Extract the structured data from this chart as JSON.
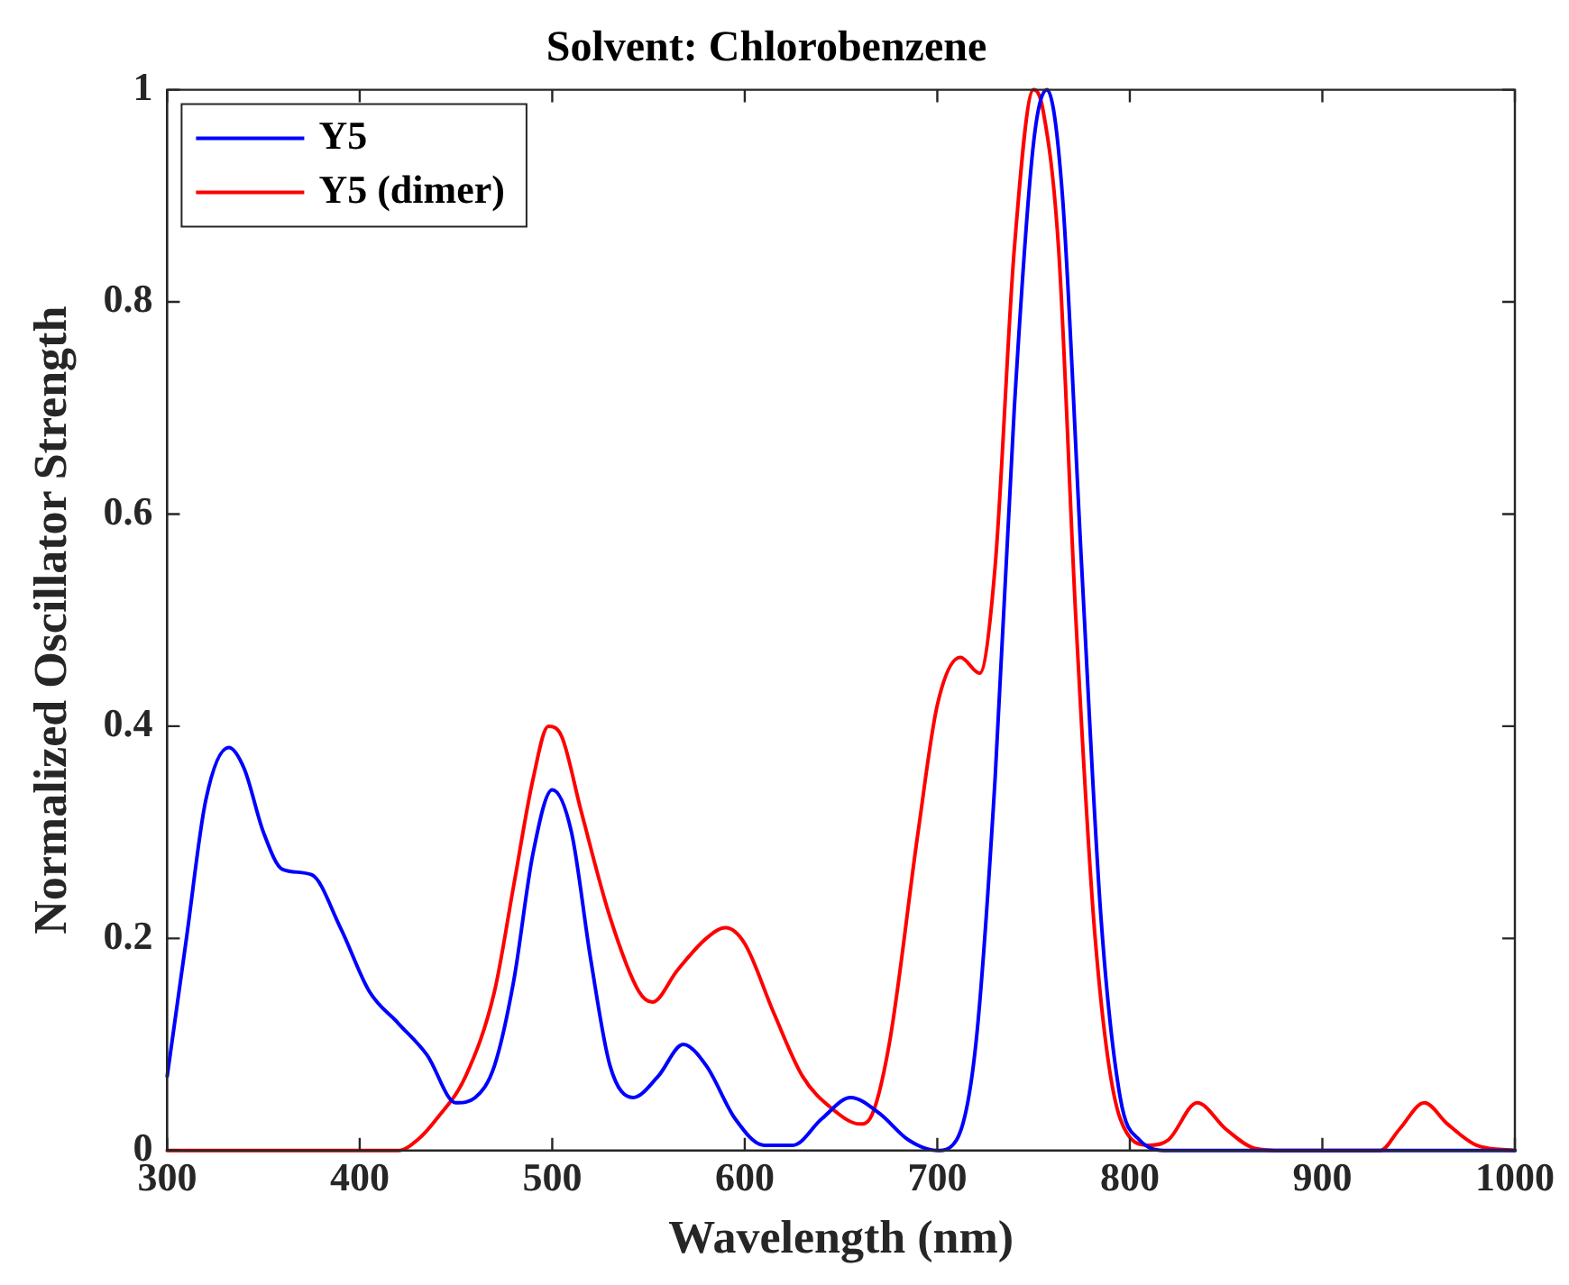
{
  "chart_data": {
    "type": "line",
    "title": "Solvent: Chlorobenzene",
    "xlabel": "Wavelength (nm)",
    "ylabel": "Normalized Oscillator Strength",
    "xlim": [
      300,
      1000
    ],
    "xticks": [
      300,
      400,
      500,
      600,
      700,
      800,
      900,
      1000
    ],
    "ylim": [
      0,
      1
    ],
    "yticks": [
      0,
      0.2,
      0.4,
      0.6,
      0.8,
      1
    ],
    "grid": false,
    "legend": "top left",
    "marker": "none",
    "line_style": "solid",
    "series": [
      {
        "name": "Y5",
        "color": "#0000ff",
        "x": [
          300,
          310,
          320,
          332,
          340,
          350,
          360,
          375,
          390,
          405,
          420,
          435,
          450,
          460,
          470,
          480,
          490,
          500,
          510,
          520,
          530,
          542,
          555,
          568,
          580,
          595,
          610,
          625,
          640,
          655,
          670,
          685,
          700,
          710,
          720,
          730,
          740,
          750,
          757,
          765,
          775,
          785,
          795,
          805,
          820,
          1000
        ],
        "values": [
          0.07,
          0.2,
          0.33,
          0.38,
          0.36,
          0.3,
          0.265,
          0.26,
          0.21,
          0.15,
          0.12,
          0.09,
          0.045,
          0.05,
          0.08,
          0.16,
          0.28,
          0.34,
          0.3,
          0.18,
          0.08,
          0.05,
          0.07,
          0.1,
          0.08,
          0.03,
          0.005,
          0.005,
          0.03,
          0.05,
          0.035,
          0.01,
          0,
          0.01,
          0.1,
          0.35,
          0.7,
          0.95,
          1,
          0.9,
          0.55,
          0.22,
          0.05,
          0.01,
          0,
          0
        ]
      },
      {
        "name": "Y5 (dimer)",
        "color": "#ff0000",
        "x": [
          300,
          420,
          430,
          440,
          455,
          470,
          480,
          490,
          498,
          505,
          515,
          530,
          545,
          552,
          565,
          580,
          590,
          600,
          615,
          630,
          645,
          660,
          665,
          675,
          690,
          700,
          712,
          722,
          730,
          740,
          750,
          755,
          763,
          772,
          782,
          795,
          810,
          820,
          835,
          850,
          865,
          880,
          930,
          940,
          953,
          965,
          980,
          1000
        ],
        "values": [
          0,
          0,
          0.01,
          0.03,
          0.07,
          0.15,
          0.25,
          0.35,
          0.4,
          0.39,
          0.32,
          0.22,
          0.15,
          0.14,
          0.17,
          0.2,
          0.21,
          0.195,
          0.13,
          0.07,
          0.04,
          0.025,
          0.03,
          0.1,
          0.3,
          0.42,
          0.465,
          0.45,
          0.55,
          0.85,
          1,
          0.98,
          0.85,
          0.5,
          0.2,
          0.03,
          0.005,
          0.01,
          0.045,
          0.02,
          0.002,
          0,
          0,
          0.02,
          0.045,
          0.025,
          0.005,
          0
        ]
      }
    ]
  }
}
